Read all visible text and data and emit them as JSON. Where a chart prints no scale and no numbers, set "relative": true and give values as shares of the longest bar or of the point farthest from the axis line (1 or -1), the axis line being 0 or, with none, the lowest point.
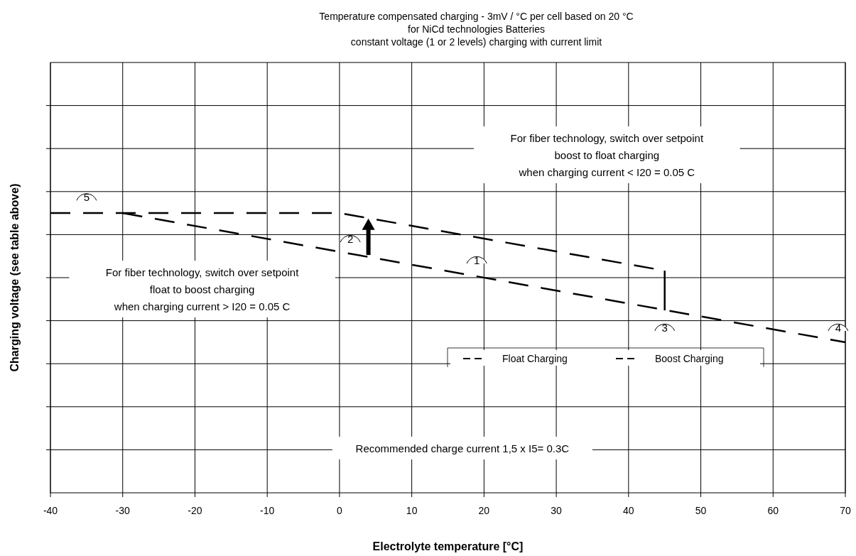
{
  "chart_data": {
    "type": "line",
    "title": "Temperature compensated charging - 3mV / °C per cell based on 20 °C\nfor NiCd technologies Batteries\nconstant voltage  (1 or 2 levels) charging  with current limit",
    "xlabel": "Electrolyte temperature [°C]",
    "ylabel": "Charging voltage (see table above)",
    "relative": true,
    "xlim": [
      -40,
      70
    ],
    "xticks": [
      -40,
      -30,
      -20,
      -10,
      0,
      10,
      20,
      30,
      40,
      50,
      60,
      70
    ],
    "grid": true,
    "legend": "bottom right",
    "marker": "none",
    "line_style": "dashed",
    "series": [
      {
        "name": "Float Charging",
        "color": "#000000",
        "x": [
          -30,
          70
        ],
        "values": [
          1.0,
          0.538
        ]
      },
      {
        "name": "Boost Charging",
        "color": "#000000",
        "x": [
          -40,
          0,
          45
        ],
        "values": [
          1.0,
          1.0,
          0.794
        ]
      },
      {
        "color": "#000000",
        "line_style": "solid",
        "x": [
          45,
          45
        ],
        "values": [
          0.794,
          0.652
        ]
      }
    ],
    "annotations": [
      "For fiber technology, switch over setpoint\nboost to float charging\nwhen charging current  <  I20 = 0.05 C",
      "For fiber technology, switch over setpoint\nfloat to boost charging\nwhen charging current  >  I20 = 0.05 C",
      "Recommended charge current 1,5 x I5= 0.3C",
      "5",
      "2",
      "1",
      "3",
      "4"
    ]
  }
}
